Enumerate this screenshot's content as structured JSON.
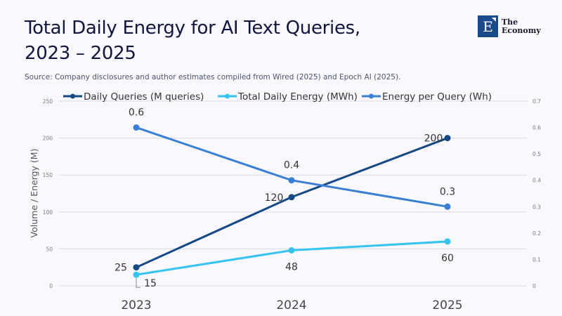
{
  "header": {
    "title_lines": [
      "Total Daily Energy for AI Text Queries,",
      "2023 – 2025"
    ],
    "source": "Source: Company disclosures and author estimates compiled from Wired (2025) and Epoch AI (2025)."
  },
  "logo": {
    "letter": "E",
    "line1": "The",
    "line2": "Economy"
  },
  "chart_data": {
    "type": "line",
    "title": "Total Daily Energy for AI Text Queries, 2023 – 2025",
    "subtitle": "Source: Company disclosures and author estimates compiled from Wired (2025) and Epoch AI (2025).",
    "categories": [
      "2023",
      "2024",
      "2025"
    ],
    "xlabel": "",
    "ylabel": "Volume / Energy (M)",
    "ylim": [
      0,
      250
    ],
    "yticks": [
      0,
      50,
      100,
      150,
      200,
      250
    ],
    "y2lim": [
      0,
      0.7
    ],
    "y2ticks": [
      0,
      0.1,
      0.2,
      0.3,
      0.4,
      0.5,
      0.6,
      0.7
    ],
    "grid": true,
    "legend_position": "top",
    "series": [
      {
        "name": "Daily Queries (M queries)",
        "axis": "left",
        "color": "#164a87",
        "values": [
          25,
          120,
          200
        ],
        "labels": [
          "25",
          "120",
          "200"
        ]
      },
      {
        "name": "Total Daily Energy (MWh)",
        "axis": "left",
        "color": "#35c3f2",
        "values": [
          15,
          48,
          60
        ],
        "labels": [
          "15",
          "48",
          "60"
        ]
      },
      {
        "name": "Energy per Query (Wh)",
        "axis": "right",
        "color": "#3b7fd4",
        "values": [
          0.6,
          0.4,
          0.3
        ],
        "labels": [
          "0.6",
          "0.4",
          "0.3"
        ]
      }
    ]
  }
}
